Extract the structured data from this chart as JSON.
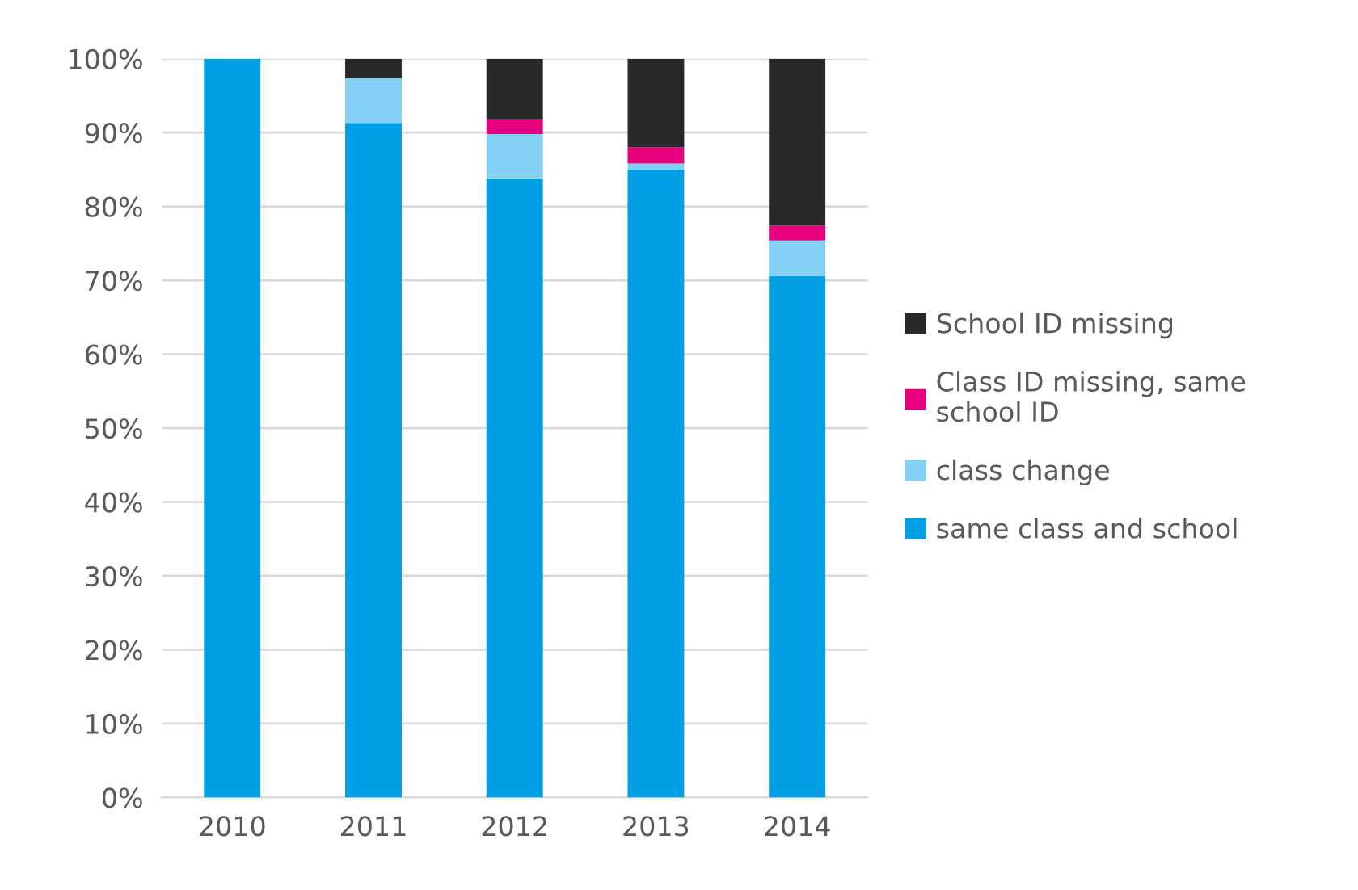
{
  "chart_data": {
    "type": "bar",
    "stacked": true,
    "categories": [
      "2010",
      "2011",
      "2012",
      "2013",
      "2014"
    ],
    "series": [
      {
        "name": "same class and school",
        "color": "#009fe3",
        "values": [
          100,
          91.3,
          83.7,
          85.0,
          70.6
        ]
      },
      {
        "name": "class change",
        "color": "#84d0f5",
        "values": [
          0,
          6.1,
          6.1,
          0.8,
          4.8
        ]
      },
      {
        "name": "Class ID missing, same school ID",
        "color": "#e6007e",
        "values": [
          0,
          0,
          2.0,
          2.2,
          2.0
        ]
      },
      {
        "name": "School ID missing",
        "color": "#282828",
        "values": [
          0,
          2.6,
          8.2,
          12.0,
          22.6
        ]
      }
    ],
    "ylim": [
      0,
      100
    ],
    "yticks": [
      {
        "value": 0,
        "label": "0%"
      },
      {
        "value": 10,
        "label": "10%"
      },
      {
        "value": 20,
        "label": "20%"
      },
      {
        "value": 30,
        "label": "30%"
      },
      {
        "value": 40,
        "label": "40%"
      },
      {
        "value": 50,
        "label": "50%"
      },
      {
        "value": 60,
        "label": "60%"
      },
      {
        "value": 70,
        "label": "70%"
      },
      {
        "value": 80,
        "label": "80%"
      },
      {
        "value": 90,
        "label": "90%"
      },
      {
        "value": 100,
        "label": "100%"
      }
    ],
    "grid": "y",
    "legend": "right"
  }
}
